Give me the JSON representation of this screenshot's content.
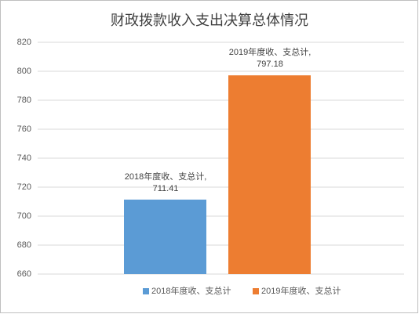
{
  "chart_data": {
    "type": "bar",
    "title": "财政拨款收入支出决算总体情况",
    "categories": [
      null
    ],
    "series": [
      {
        "name": "2018年度收、支总计",
        "color": "#5b9bd5",
        "values": [
          711.41
        ],
        "value_labels": [
          "2018年度收、支总计, 711.41"
        ]
      },
      {
        "name": "2019年度收、支总计",
        "color": "#ed7d31",
        "values": [
          797.18
        ],
        "value_labels": [
          "2019年度收、支总计, 797.18"
        ]
      }
    ],
    "ylim": [
      660,
      820
    ],
    "yticks": [
      660,
      680,
      700,
      720,
      740,
      760,
      780,
      800,
      820
    ],
    "grid": true,
    "legend": "bottom"
  }
}
